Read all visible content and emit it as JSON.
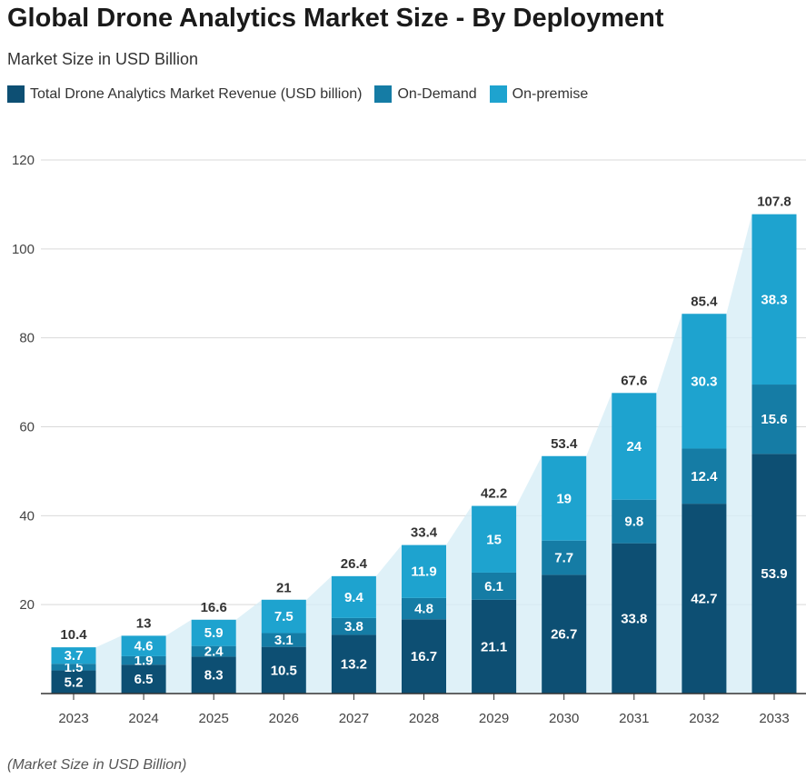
{
  "title": "Global Drone Analytics Market Size - By Deployment",
  "subtitle": "Market Size in USD Billion",
  "footer": "(Market Size in USD Billion)",
  "colors": {
    "total": "#0d4f73",
    "on_demand": "#157ca5",
    "on_premise": "#1ea3cf",
    "area": "#d7eef6"
  },
  "chart_data": {
    "type": "bar",
    "stacked": true,
    "categories": [
      "2023",
      "2024",
      "2025",
      "2026",
      "2027",
      "2028",
      "2029",
      "2030",
      "2031",
      "2032",
      "2033"
    ],
    "series": [
      {
        "name": "Total Drone Analytics Market Revenue (USD billion)",
        "values": [
          5.2,
          6.5,
          8.3,
          10.5,
          13.2,
          16.7,
          21.1,
          26.7,
          33.8,
          42.7,
          53.9
        ]
      },
      {
        "name": "On-Demand",
        "values": [
          1.5,
          1.9,
          2.4,
          3.1,
          3.8,
          4.8,
          6.1,
          7.7,
          9.8,
          12.4,
          15.6
        ]
      },
      {
        "name": "On-premise",
        "values": [
          3.7,
          4.6,
          5.9,
          7.5,
          9.4,
          11.9,
          15,
          19,
          24,
          30.3,
          38.3
        ]
      }
    ],
    "totals": [
      10.4,
      13,
      16.6,
      21,
      26.4,
      33.4,
      42.2,
      53.4,
      67.6,
      85.4,
      107.8
    ],
    "ylim": [
      0,
      120
    ],
    "yticks": [
      20,
      40,
      60,
      80,
      100,
      120
    ],
    "grid": true,
    "legend": "top-left"
  }
}
